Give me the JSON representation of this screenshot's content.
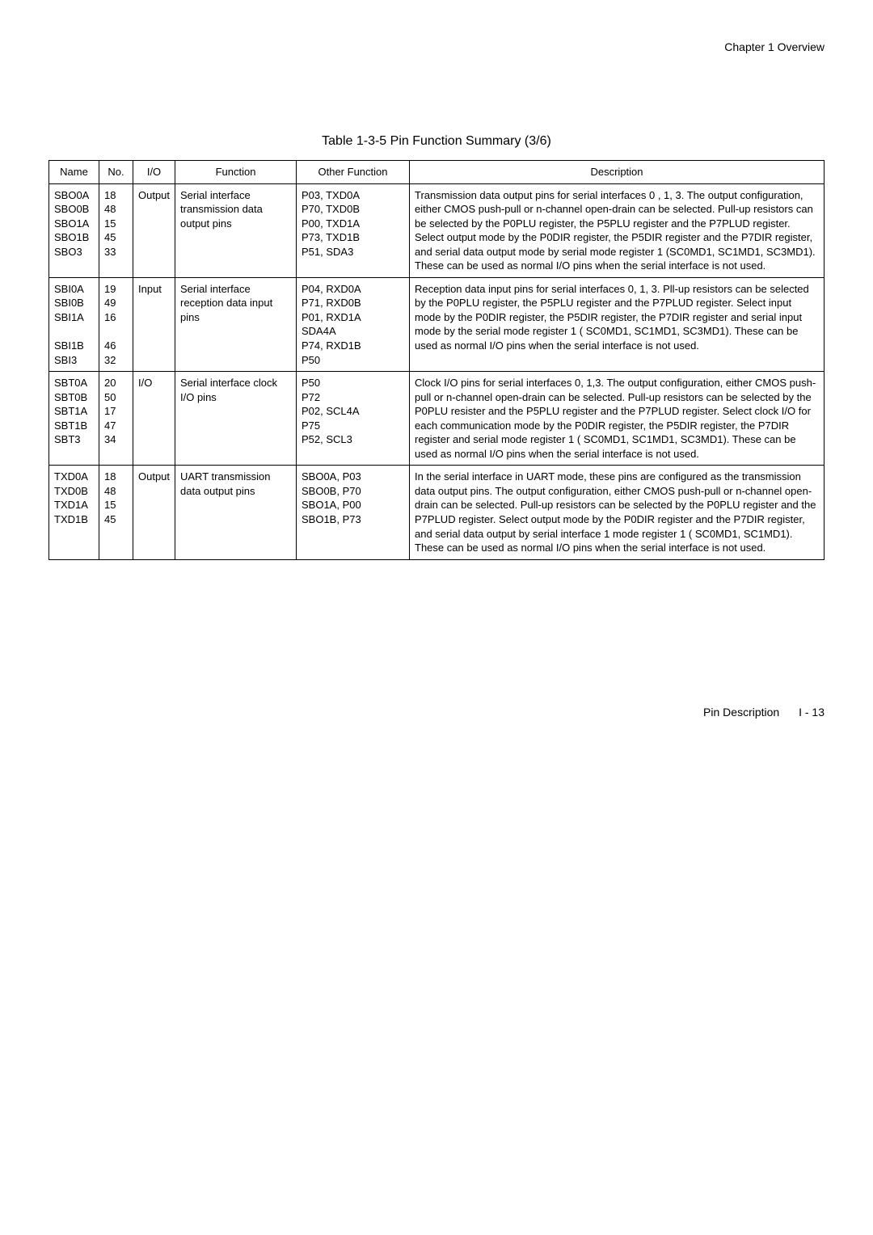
{
  "chapter_header": "Chapter 1   Overview",
  "table_title": "Table 1-3-5    Pin Function Summary (3/6)",
  "columns": [
    "Name",
    "No.",
    "I/O",
    "Function",
    "Other Function",
    "Description"
  ],
  "rows": [
    {
      "name": "SBO0A\nSBO0B\nSBO1A\nSBO1B\nSBO3",
      "no": "18\n48\n15\n45\n33",
      "io": "Output",
      "function": "Serial interface transmission data output pins",
      "other": "P03, TXD0A\nP70, TXD0B\nP00, TXD1A\nP73, TXD1B\nP51, SDA3",
      "desc": "Transmission data output pins for serial interfaces 0 , 1, 3.  The output configuration, either CMOS push-pull or n-channel open-drain can be selected.  Pull-up resistors can be selected by the P0PLU register, the P5PLU register and the P7PLUD register. Select output mode by the P0DIR register, the P5DIR register and the P7DIR register, and serial data output mode by serial mode register 1 (SC0MD1, SC1MD1,  SC3MD1).  These can be used as normal I/O pins when the serial interface is not used."
    },
    {
      "name": "SBI0A\nSBI0B\nSBI1A\n\nSBI1B\nSBI3",
      "no": "19\n49\n16\n\n46\n32",
      "io": "Input",
      "function": "Serial interface reception data input pins",
      "other": "P04, RXD0A\nP71, RXD0B\nP01, RXD1A\nSDA4A\nP74, RXD1B\nP50",
      "desc": "Reception data input pins for serial interfaces 0, 1, 3.  Pll-up resistors can be selected by the P0PLU register, the P5PLU register and the P7PLUD register. Select input mode by the P0DIR register, the P5DIR register, the P7DIR register and serial input mode by the serial mode register 1 ( SC0MD1, SC1MD1, SC3MD1).  These can be used as normal I/O pins when the serial interface is not used."
    },
    {
      "name": "SBT0A\nSBT0B\nSBT1A\nSBT1B\nSBT3",
      "no": "20\n50\n17\n47\n34",
      "io": "I/O",
      "function": "Serial interface clock I/O pins",
      "other": "P50\nP72\nP02, SCL4A\nP75\nP52, SCL3",
      "desc": "Clock I/O pins for serial interfaces 0, 1,3.  The output configuration, either CMOS push-pull or n-channel open-drain can be selected. Pull-up resistors can be selected by the P0PLU resister and the P5PLU register and the P7PLUD register. Select clock I/O for each communication mode by the P0DIR register, the P5DIR register, the P7DIR register and serial mode register 1 ( SC0MD1, SC1MD1, SC3MD1).  These can be used as normal I/O pins when the serial interface is not used."
    },
    {
      "name": "TXD0A\nTXD0B\nTXD1A\nTXD1B",
      "no": "18\n48\n15\n45",
      "io": "Output",
      "function": "UART transmission data output pins",
      "other": "SBO0A, P03\nSBO0B, P70\nSBO1A, P00\nSBO1B, P73",
      "desc": "In the serial interface in UART mode, these pins are configured as the transmission data output pins.   The output configuration, either CMOS push-pull or n-channel open-drain can be selected. Pull-up resistors can be selected by the  P0PLU register and  the P7PLUD register.  Select output mode by the P0DIR register and the P7DIR register, and serial data output by serial interface 1 mode register 1 ( SC0MD1, SC1MD1). These can be used as normal I/O pins when the serial interface is not used."
    }
  ],
  "footer_label": "Pin Description",
  "footer_page": "I - 13"
}
